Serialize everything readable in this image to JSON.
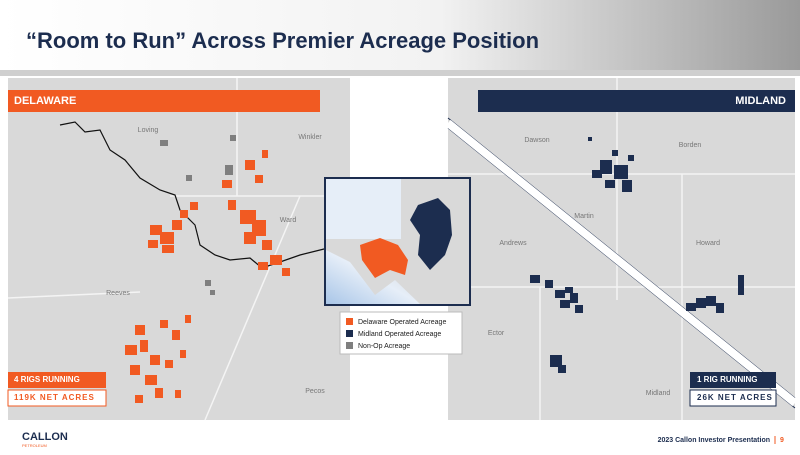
{
  "header": {
    "title": "“Room to Run” Across Premier Acreage Position"
  },
  "delaware": {
    "label": "DELAWARE",
    "counties": [
      "Loving",
      "Winkler",
      "Ward",
      "Reeves",
      "Pecos"
    ],
    "rigs": "4 RIGS RUNNING",
    "net_acres": "119K NET ACRES"
  },
  "midland": {
    "label": "MIDLAND",
    "counties": [
      "Dawson",
      "Borden",
      "Martin",
      "Andrews",
      "Howard",
      "Ector",
      "Midland"
    ],
    "rigs": "1 RIG RUNNING",
    "net_acres": "26K NET ACRES"
  },
  "legend": [
    "Delaware Operated Acreage",
    "Midland Operated Acreage",
    "Non-Op Acreage"
  ],
  "footer": {
    "logo": "CALLON",
    "logo_sub": "PETROLEUM",
    "text": "2023 Callon Investor Presentation",
    "page": 9
  }
}
